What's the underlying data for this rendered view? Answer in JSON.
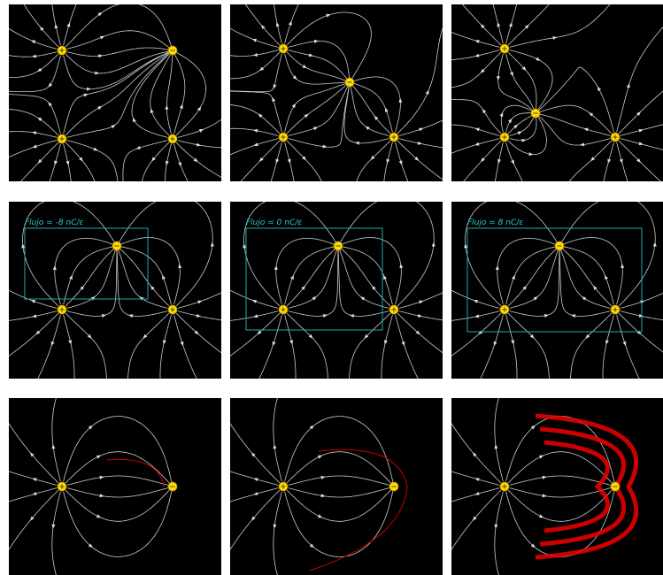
{
  "flux_labels": [
    "Flujo = -8 nC/ε",
    "Flujo = 0 nC/ε",
    "Flujo = 8 nC/ε"
  ]
}
